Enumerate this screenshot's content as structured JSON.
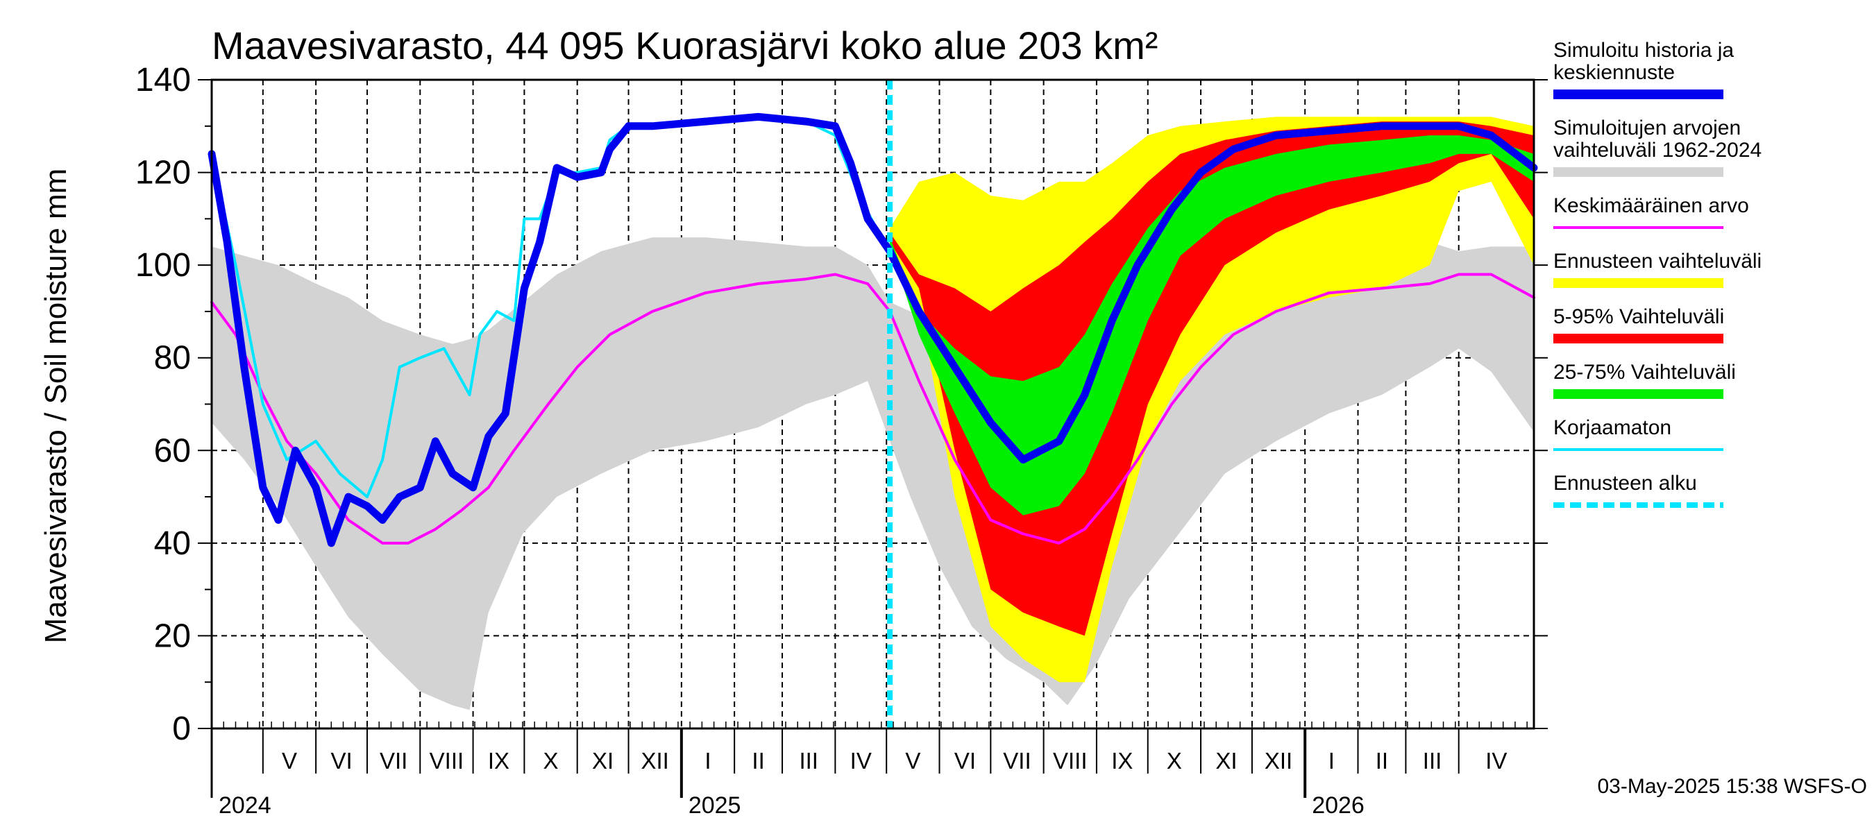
{
  "chart_data": {
    "type": "area",
    "title": "Maavesivarasto, 44 095 Kuorasjärvi koko alue 203 km²",
    "ylabel": "Maavesivarasto / Soil moisture   mm",
    "ylim": [
      0,
      140
    ],
    "yticks": [
      0,
      20,
      40,
      60,
      80,
      100,
      120,
      140
    ],
    "xlim": [
      "2024-04-01",
      "2026-05-15"
    ],
    "forecast_start": "2025-05-03",
    "grid": true,
    "legend_placement": "right",
    "footer": "03-May-2025 15:38 WSFS-O",
    "months": [
      {
        "label": "V",
        "date": "2024-05-01"
      },
      {
        "label": "VI",
        "date": "2024-06-01"
      },
      {
        "label": "VII",
        "date": "2024-07-01"
      },
      {
        "label": "VIII",
        "date": "2024-08-01"
      },
      {
        "label": "IX",
        "date": "2024-09-01"
      },
      {
        "label": "X",
        "date": "2024-10-01"
      },
      {
        "label": "XI",
        "date": "2024-11-01"
      },
      {
        "label": "XII",
        "date": "2024-12-01"
      },
      {
        "label": "I",
        "date": "2025-01-01"
      },
      {
        "label": "II",
        "date": "2025-02-01"
      },
      {
        "label": "III",
        "date": "2025-03-01"
      },
      {
        "label": "IV",
        "date": "2025-04-01"
      },
      {
        "label": "V",
        "date": "2025-05-01"
      },
      {
        "label": "VI",
        "date": "2025-06-01"
      },
      {
        "label": "VII",
        "date": "2025-07-01"
      },
      {
        "label": "VIII",
        "date": "2025-08-01"
      },
      {
        "label": "IX",
        "date": "2025-09-01"
      },
      {
        "label": "X",
        "date": "2025-10-01"
      },
      {
        "label": "XI",
        "date": "2025-11-01"
      },
      {
        "label": "XII",
        "date": "2025-12-01"
      },
      {
        "label": "I",
        "date": "2026-01-01"
      },
      {
        "label": "II",
        "date": "2026-02-01"
      },
      {
        "label": "III",
        "date": "2026-03-01"
      },
      {
        "label": "IV",
        "date": "2026-04-01"
      }
    ],
    "years": [
      {
        "label": "2024",
        "date": "2024-04-01"
      },
      {
        "label": "2025",
        "date": "2025-01-01"
      },
      {
        "label": "2026",
        "date": "2026-01-01"
      }
    ],
    "series": [
      {
        "name": "Simuloitujen arvojen vaihteluväli 1962-2024",
        "kind": "band",
        "color": "#d3d3d3",
        "x": [
          "2024-04-01",
          "2024-04-20",
          "2024-05-10",
          "2024-06-01",
          "2024-06-20",
          "2024-07-10",
          "2024-08-01",
          "2024-08-20",
          "2024-08-30",
          "2024-09-10",
          "2024-09-30",
          "2024-10-20",
          "2024-11-15",
          "2024-12-15",
          "2025-01-15",
          "2025-02-15",
          "2025-03-15",
          "2025-04-01",
          "2025-04-20",
          "2025-05-03",
          "2025-05-15",
          "2025-06-01",
          "2025-06-20",
          "2025-07-10",
          "2025-08-01",
          "2025-08-15",
          "2025-09-01",
          "2025-09-20",
          "2025-10-15",
          "2025-11-15",
          "2025-12-15",
          "2026-01-15",
          "2026-02-15",
          "2026-03-15",
          "2026-04-01",
          "2026-04-20",
          "2026-05-15"
        ],
        "upper": [
          104,
          102,
          100,
          96,
          93,
          88,
          85,
          83,
          84,
          86,
          92,
          98,
          103,
          106,
          106,
          105,
          104,
          104,
          100,
          92,
          90,
          88,
          85,
          82,
          82,
          85,
          90,
          96,
          101,
          105,
          106,
          106,
          106,
          105,
          103,
          104,
          104
        ],
        "lower": [
          66,
          58,
          48,
          35,
          24,
          16,
          8,
          5,
          4,
          25,
          42,
          50,
          55,
          60,
          62,
          65,
          70,
          72,
          75,
          62,
          50,
          35,
          22,
          15,
          10,
          5,
          14,
          28,
          40,
          55,
          62,
          68,
          72,
          78,
          82,
          77,
          64
        ]
      },
      {
        "name": "Ennusteen vaihteluväli",
        "kind": "band",
        "color": "#ffff00",
        "x": [
          "2025-05-03",
          "2025-05-20",
          "2025-06-10",
          "2025-07-01",
          "2025-07-20",
          "2025-08-10",
          "2025-08-25",
          "2025-09-10",
          "2025-10-01",
          "2025-10-20",
          "2025-11-15",
          "2025-12-15",
          "2026-01-15",
          "2026-02-15",
          "2026-03-15",
          "2026-04-01",
          "2026-04-20",
          "2026-05-15"
        ],
        "upper": [
          108,
          118,
          120,
          115,
          114,
          118,
          118,
          122,
          128,
          130,
          131,
          132,
          132,
          132,
          132,
          132,
          132,
          130
        ],
        "lower": [
          104,
          92,
          50,
          22,
          15,
          10,
          10,
          35,
          62,
          75,
          85,
          90,
          93,
          95,
          100,
          116,
          118,
          100
        ]
      },
      {
        "name": "5-95% Vaihteluväli",
        "kind": "band",
        "color": "#ff0000",
        "x": [
          "2025-05-03",
          "2025-05-20",
          "2025-06-10",
          "2025-07-01",
          "2025-07-20",
          "2025-08-10",
          "2025-08-25",
          "2025-09-10",
          "2025-10-01",
          "2025-10-20",
          "2025-11-15",
          "2025-12-15",
          "2026-01-15",
          "2026-02-15",
          "2026-03-15",
          "2026-04-01",
          "2026-04-20",
          "2026-05-15"
        ],
        "upper": [
          107,
          98,
          95,
          90,
          95,
          100,
          105,
          110,
          118,
          124,
          127,
          129,
          130,
          131,
          131,
          131,
          130,
          128
        ],
        "lower": [
          105,
          95,
          60,
          30,
          25,
          22,
          20,
          42,
          70,
          85,
          100,
          107,
          112,
          115,
          118,
          122,
          124,
          110
        ]
      },
      {
        "name": "25-75% Vaihteluväli",
        "kind": "band",
        "color": "#00ee00",
        "x": [
          "2025-05-03",
          "2025-05-20",
          "2025-06-10",
          "2025-07-01",
          "2025-07-20",
          "2025-08-10",
          "2025-08-25",
          "2025-09-10",
          "2025-10-01",
          "2025-10-20",
          "2025-11-15",
          "2025-12-15",
          "2026-01-15",
          "2026-02-15",
          "2026-03-15",
          "2026-04-01",
          "2026-04-20",
          "2026-05-15"
        ],
        "upper": [
          106,
          90,
          82,
          76,
          75,
          78,
          85,
          96,
          108,
          116,
          121,
          124,
          126,
          127,
          128,
          128,
          127,
          124
        ],
        "lower": [
          104,
          85,
          68,
          52,
          46,
          48,
          55,
          68,
          88,
          102,
          110,
          115,
          118,
          120,
          122,
          124,
          124,
          118
        ]
      },
      {
        "name": "Keskimääräinen arvo",
        "kind": "line",
        "color": "#ff00ff",
        "x": [
          "2024-04-01",
          "2024-04-15",
          "2024-05-01",
          "2024-05-15",
          "2024-06-01",
          "2024-06-20",
          "2024-07-10",
          "2024-07-25",
          "2024-08-10",
          "2024-08-25",
          "2024-09-10",
          "2024-09-25",
          "2024-10-15",
          "2024-11-01",
          "2024-11-20",
          "2024-12-15",
          "2025-01-15",
          "2025-02-15",
          "2025-03-15",
          "2025-04-01",
          "2025-04-20",
          "2025-05-03",
          "2025-05-20",
          "2025-06-10",
          "2025-07-01",
          "2025-07-20",
          "2025-08-10",
          "2025-08-25",
          "2025-09-10",
          "2025-09-25",
          "2025-10-15",
          "2025-11-01",
          "2025-11-20",
          "2025-12-15",
          "2026-01-15",
          "2026-02-15",
          "2026-03-15",
          "2026-04-01",
          "2026-04-20",
          "2026-05-15"
        ],
        "values": [
          92,
          85,
          72,
          62,
          55,
          45,
          40,
          40,
          43,
          47,
          52,
          60,
          70,
          78,
          85,
          90,
          94,
          96,
          97,
          98,
          96,
          90,
          75,
          58,
          45,
          42,
          40,
          43,
          50,
          58,
          70,
          78,
          85,
          90,
          94,
          95,
          96,
          98,
          98,
          93
        ]
      },
      {
        "name": "Korjaamaton",
        "kind": "line",
        "color": "#00e5ff",
        "x": [
          "2024-04-01",
          "2024-04-15",
          "2024-05-01",
          "2024-05-15",
          "2024-06-01",
          "2024-06-15",
          "2024-07-01",
          "2024-07-10",
          "2024-07-20",
          "2024-08-01",
          "2024-08-15",
          "2024-08-30",
          "2024-09-05",
          "2024-09-15",
          "2024-09-25",
          "2024-10-01",
          "2024-10-10",
          "2024-10-20",
          "2024-11-01",
          "2024-11-15",
          "2024-11-20",
          "2024-12-01",
          "2024-12-15",
          "2025-01-15",
          "2025-02-15",
          "2025-03-15",
          "2025-04-01",
          "2025-04-15",
          "2025-04-25",
          "2025-05-03"
        ],
        "values": [
          124,
          100,
          70,
          58,
          62,
          55,
          50,
          58,
          78,
          80,
          82,
          72,
          85,
          90,
          88,
          110,
          110,
          120,
          120,
          121,
          127,
          130,
          130,
          131,
          132,
          131,
          128,
          115,
          108,
          104
        ]
      },
      {
        "name": "Simuloitu historia ja keskiennuste",
        "kind": "line",
        "color": "#0000ee",
        "x": [
          "2024-04-01",
          "2024-04-10",
          "2024-04-20",
          "2024-05-01",
          "2024-05-10",
          "2024-05-20",
          "2024-06-01",
          "2024-06-10",
          "2024-06-20",
          "2024-07-01",
          "2024-07-10",
          "2024-07-20",
          "2024-08-01",
          "2024-08-10",
          "2024-08-20",
          "2024-09-01",
          "2024-09-10",
          "2024-09-20",
          "2024-10-01",
          "2024-10-10",
          "2024-10-20",
          "2024-11-01",
          "2024-11-15",
          "2024-11-20",
          "2024-12-01",
          "2024-12-15",
          "2025-01-15",
          "2025-02-15",
          "2025-03-15",
          "2025-04-01",
          "2025-04-10",
          "2025-04-20",
          "2025-05-03",
          "2025-05-20",
          "2025-06-10",
          "2025-07-01",
          "2025-07-20",
          "2025-08-10",
          "2025-08-25",
          "2025-09-10",
          "2025-09-25",
          "2025-10-15",
          "2025-11-01",
          "2025-11-20",
          "2025-12-15",
          "2026-01-15",
          "2026-02-15",
          "2026-03-15",
          "2026-04-01",
          "2026-04-20",
          "2026-05-15"
        ],
        "values": [
          124,
          105,
          78,
          52,
          45,
          60,
          52,
          40,
          50,
          48,
          45,
          50,
          52,
          62,
          55,
          52,
          63,
          68,
          95,
          105,
          121,
          119,
          120,
          125,
          130,
          130,
          131,
          132,
          131,
          130,
          122,
          110,
          103,
          90,
          78,
          66,
          58,
          62,
          72,
          88,
          100,
          112,
          120,
          125,
          128,
          129,
          130,
          130,
          130,
          128,
          121
        ]
      },
      {
        "name": "Ennusteen alku",
        "kind": "vline",
        "color": "#00e5ff",
        "x": "2025-05-03"
      }
    ]
  },
  "legend": [
    {
      "label": "Simuloitu historia ja keskiennuste",
      "color": "#0000ee",
      "style": "thick"
    },
    {
      "label": "Simuloitujen arvojen vaihteluväli 1962-2024",
      "color": "#d3d3d3",
      "style": "thick"
    },
    {
      "label": "Keskimääräinen arvo",
      "color": "#ff00ff",
      "style": "thin"
    },
    {
      "label": "Ennusteen vaihteluväli",
      "color": "#ffff00",
      "style": "thick"
    },
    {
      "label": "5-95% Vaihteluväli",
      "color": "#ff0000",
      "style": "thick"
    },
    {
      "label": "25-75% Vaihteluväli",
      "color": "#00ee00",
      "style": "thick"
    },
    {
      "label": "Korjaamaton",
      "color": "#00e5ff",
      "style": "thin"
    },
    {
      "label": "Ennusteen alku",
      "color": "#00e5ff",
      "style": "dashed"
    }
  ]
}
